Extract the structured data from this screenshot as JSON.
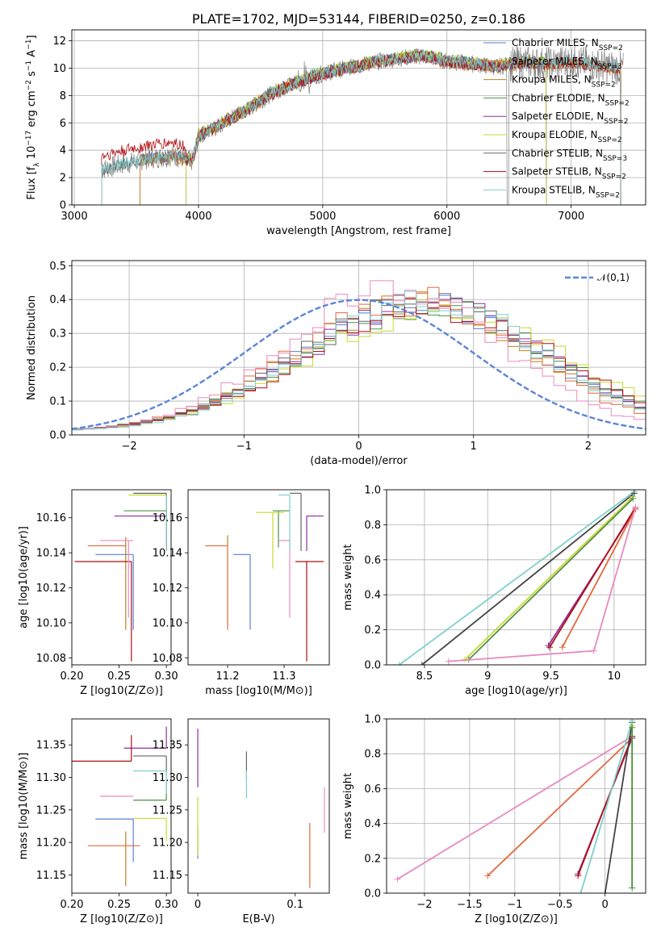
{
  "chart_data": [
    {
      "type": "line",
      "title": "PLATE=1702, MJD=53144, FIBERID=0250, z=0.186",
      "xlabel": "wavelength [Angstrom, rest frame]",
      "ylabel": "Flux [f_λ 10^-17 erg cm^-2 s^-1 A^-1]",
      "xlim": [
        2980,
        7600
      ],
      "ylim": [
        0,
        12.8
      ],
      "xticks": [
        3000,
        4000,
        5000,
        6000,
        7000
      ],
      "yticks": [
        0,
        2,
        4,
        6,
        8,
        10,
        12
      ],
      "grid": true,
      "legend_position": "top-right",
      "series": [
        {
          "name": "Chabrier MILES, N_SSP=2",
          "color": "#5b7fd6",
          "range": [
            3530,
            7400
          ]
        },
        {
          "name": "Salpeter MILES, N_SSP=3",
          "color": "#e2683a",
          "range": [
            3530,
            7400
          ]
        },
        {
          "name": "Kroupa MILES, N_SSP=2",
          "color": "#c47e1d",
          "range": [
            3530,
            7400
          ]
        },
        {
          "name": "Chabrier ELODIE, N_SSP=2",
          "color": "#4f8f4a",
          "range": [
            3900,
            6800
          ]
        },
        {
          "name": "Salpeter ELODIE, N_SSP=2",
          "color": "#8e2ea0",
          "range": [
            3900,
            6800
          ]
        },
        {
          "name": "Kroupa ELODIE, N_SSP=2",
          "color": "#c9d92c",
          "range": [
            3900,
            6800
          ]
        },
        {
          "name": "Chabrier STELIB, N_SSP=3",
          "color": "#666666",
          "range": [
            3220,
            7400
          ]
        },
        {
          "name": "Salpeter STELIB, N_SSP=2",
          "color": "#b00d12",
          "range": [
            3220,
            7400
          ]
        },
        {
          "name": "Kroupa STELIB, N_SSP=2",
          "color": "#7ecfcf",
          "range": [
            3220,
            7400
          ]
        }
      ],
      "flux_anchors": {
        "x": [
          3220,
          3400,
          3600,
          3800,
          3950,
          4000,
          4200,
          4400,
          4600,
          4800,
          5000,
          5200,
          5400,
          5600,
          5800,
          6000,
          6200,
          6400,
          6600,
          6800,
          7000,
          7200,
          7400
        ],
        "y": [
          2.6,
          3.0,
          3.4,
          3.6,
          3.2,
          5.0,
          6.0,
          7.0,
          8.2,
          9.0,
          9.6,
          10.0,
          10.4,
          10.7,
          10.9,
          10.5,
          10.3,
          10.1,
          10.4,
          10.3,
          10.5,
          10.2,
          10.0
        ]
      }
    },
    {
      "type": "step",
      "xlabel": "(data-model)/error",
      "ylabel": "Normed distribution",
      "xlim": [
        -2.5,
        2.5
      ],
      "ylim": [
        0,
        0.515
      ],
      "xticks": [
        -2,
        -1,
        0,
        1,
        2
      ],
      "yticks": [
        0.0,
        0.1,
        0.2,
        0.3,
        0.4,
        0.5
      ],
      "grid": true,
      "legend": "𝒩(0,1)",
      "reference_curve": {
        "name": "N(0,1)",
        "mean": 0,
        "sigma": 1,
        "color": "#5b86d6"
      },
      "bin_width": 0.1,
      "series": [
        {
          "color": "#5b7fd6",
          "mu": 0.55,
          "sigma": 1.05
        },
        {
          "color": "#e2683a",
          "mu": 0.45,
          "sigma": 1.0
        },
        {
          "color": "#c47e1d",
          "mu": 0.5,
          "sigma": 1.05
        },
        {
          "color": "#4f8f4a",
          "mu": 0.6,
          "sigma": 1.1
        },
        {
          "color": "#8e2ea0",
          "mu": 0.6,
          "sigma": 1.05
        },
        {
          "color": "#c9d92c",
          "mu": 0.7,
          "sigma": 1.1
        },
        {
          "color": "#666666",
          "mu": 0.55,
          "sigma": 1.05
        },
        {
          "color": "#b00d12",
          "mu": 0.65,
          "sigma": 1.1
        },
        {
          "color": "#e88ac0",
          "mu": 0.3,
          "sigma": 0.95
        },
        {
          "color": "#7ecfcf",
          "mu": 0.55,
          "sigma": 1.0
        }
      ]
    },
    {
      "type": "errorbar",
      "xlabel": "Z [log10(Z/Z⊙)]",
      "ylabel": "age [log10(age/yr)]",
      "xlim": [
        0.2,
        0.305
      ],
      "ylim": [
        10.076,
        10.176
      ],
      "xticks": [
        0.2,
        0.25,
        0.3
      ],
      "xticklabels": [
        "0.20",
        "0.25",
        "0.30"
      ],
      "yticks": [
        10.08,
        10.1,
        10.12,
        10.14,
        10.16
      ],
      "points": [
        {
          "color": "#5b7fd6",
          "x": 0.265,
          "y": 10.139,
          "xerr": [
            0.04,
            0
          ],
          "yerr": [
            0.043,
            0
          ]
        },
        {
          "color": "#e2683a",
          "x": 0.257,
          "y": 10.144,
          "xerr": [
            0.04,
            0.0
          ],
          "yerr": [
            0,
            0.0
          ]
        },
        {
          "color": "#c47e1d",
          "x": 0.257,
          "y": 10.144,
          "xerr": [
            0,
            0.0
          ],
          "yerr": [
            0.048,
            0.005
          ]
        },
        {
          "color": "#4f8f4a",
          "x": 0.3,
          "y": 10.164,
          "xerr": [
            0.045,
            0
          ],
          "yerr": [
            0.021,
            0
          ]
        },
        {
          "color": "#8e2ea0",
          "x": 0.3,
          "y": 10.161,
          "xerr": [
            0.055,
            0
          ],
          "yerr": [
            0.02,
            0
          ]
        },
        {
          "color": "#c9d92c",
          "x": 0.3,
          "y": 10.173,
          "xerr": [
            0.04,
            0
          ],
          "yerr": [
            0.032,
            0
          ]
        },
        {
          "color": "#666666",
          "x": 0.3,
          "y": 10.174,
          "xerr": [
            0.035,
            0
          ],
          "yerr": [
            0.033,
            0
          ]
        },
        {
          "color": "#b00d12",
          "x": 0.263,
          "y": 10.135,
          "xerr": [
            0.06,
            0
          ],
          "yerr": [
            0.057,
            0
          ]
        },
        {
          "color": "#e88ac0",
          "x": 0.26,
          "y": 10.147,
          "xerr": [
            0.03,
            0.005
          ],
          "yerr": [
            0.044,
            0
          ]
        },
        {
          "color": "#7ecfcf",
          "x": 0.3,
          "y": 10.173,
          "xerr": [
            0,
            0
          ],
          "yerr": [
            0.032,
            0
          ]
        }
      ]
    },
    {
      "type": "errorbar",
      "xlabel": "mass [log10(M/M⊙)]",
      "ylabel": "",
      "xlim": [
        11.13,
        11.38
      ],
      "ylim": [
        10.076,
        10.176
      ],
      "xticks": [
        11.2,
        11.3
      ],
      "yticks": [
        10.08,
        10.1,
        10.12,
        10.14,
        10.16
      ],
      "points": [
        {
          "color": "#5b7fd6",
          "x": 11.24,
          "y": 10.139,
          "xerr": [
            0.03,
            0
          ],
          "yerr": [
            0.043,
            0
          ]
        },
        {
          "color": "#e2683a",
          "x": 11.2,
          "y": 10.144,
          "xerr": [
            0.04,
            0
          ],
          "yerr": [
            0.048,
            0
          ]
        },
        {
          "color": "#c47e1d",
          "x": 11.2,
          "y": 10.144,
          "xerr": [
            0,
            0
          ],
          "yerr": [
            0,
            0.006
          ]
        },
        {
          "color": "#4f8f4a",
          "x": 11.29,
          "y": 10.164,
          "xerr": [
            0.01,
            0.02
          ],
          "yerr": [
            0.021,
            0
          ]
        },
        {
          "color": "#8e2ea0",
          "x": 11.34,
          "y": 10.161,
          "xerr": [
            0,
            0.03
          ],
          "yerr": [
            0.02,
            0
          ]
        },
        {
          "color": "#c9d92c",
          "x": 11.28,
          "y": 10.163,
          "xerr": [
            0.03,
            0.02
          ],
          "yerr": [
            0.032,
            0
          ]
        },
        {
          "color": "#666666",
          "x": 11.33,
          "y": 10.174,
          "xerr": [
            0.02,
            0
          ],
          "yerr": [
            0.033,
            0
          ]
        },
        {
          "color": "#b00d12",
          "x": 11.34,
          "y": 10.135,
          "xerr": [
            0.02,
            0.03
          ],
          "yerr": [
            0.057,
            0
          ]
        },
        {
          "color": "#e88ac0",
          "x": 11.31,
          "y": 10.147,
          "xerr": [
            0.02,
            0
          ],
          "yerr": [
            0.044,
            0
          ]
        },
        {
          "color": "#7ecfcf",
          "x": 11.31,
          "y": 10.173,
          "xerr": [
            0.02,
            0
          ],
          "yerr": [
            0.032,
            0
          ]
        }
      ]
    },
    {
      "type": "line",
      "xlabel": "age [log10(age/yr)]",
      "ylabel": "mass weight",
      "xlim": [
        8.2,
        10.25
      ],
      "ylim": [
        0,
        1.0
      ],
      "xticks": [
        8.5,
        9.0,
        9.5,
        10.0
      ],
      "yticks": [
        0.0,
        0.2,
        0.4,
        0.6,
        0.8,
        1.0
      ],
      "grid": true,
      "series": [
        {
          "color": "#7ecfcf",
          "x": [
            8.3,
            10.16
          ],
          "y": [
            0.0,
            0.99
          ]
        },
        {
          "color": "#444444",
          "x": [
            8.48,
            10.16
          ],
          "y": [
            0.0,
            0.98
          ]
        },
        {
          "color": "#c9d92c",
          "x": [
            8.82,
            10.15
          ],
          "y": [
            0.03,
            0.96
          ]
        },
        {
          "color": "#4f8f4a",
          "x": [
            8.85,
            10.15
          ],
          "y": [
            0.03,
            0.95
          ]
        },
        {
          "color": "#8e2ea0",
          "x": [
            9.48,
            10.17
          ],
          "y": [
            0.11,
            0.89
          ]
        },
        {
          "color": "#b00d12",
          "x": [
            9.49,
            10.17
          ],
          "y": [
            0.1,
            0.9
          ]
        },
        {
          "color": "#e2683a",
          "x": [
            9.59,
            10.17
          ],
          "y": [
            0.1,
            0.89
          ]
        },
        {
          "color": "#e88ac0",
          "x": [
            8.69,
            9.84,
            10.17
          ],
          "y": [
            0.02,
            0.08,
            0.9
          ]
        }
      ]
    },
    {
      "type": "errorbar",
      "xlabel": "Z [log10(Z/Z⊙)]",
      "ylabel": "mass [log10(M/M⊙)]",
      "xlim": [
        0.2,
        0.305
      ],
      "ylim": [
        11.122,
        11.39
      ],
      "xticks": [
        0.2,
        0.25,
        0.3
      ],
      "xticklabels": [
        "0.20",
        "0.25",
        "0.30"
      ],
      "yticks": [
        11.15,
        11.2,
        11.25,
        11.3,
        11.35
      ],
      "points": [
        {
          "color": "#5b7fd6",
          "x": 0.265,
          "y": 11.236,
          "xerr": [
            0.04,
            0
          ],
          "yerr": [
            0.066,
            0
          ]
        },
        {
          "color": "#e2683a",
          "x": 0.257,
          "y": 11.195,
          "xerr": [
            0.04,
            0.015
          ],
          "yerr": [
            0,
            0
          ]
        },
        {
          "color": "#c47e1d",
          "x": 0.257,
          "y": 11.195,
          "xerr": [
            0,
            0
          ],
          "yerr": [
            0.062,
            0.022
          ]
        },
        {
          "color": "#4f8f4a",
          "x": 0.3,
          "y": 11.265,
          "xerr": [
            0.035,
            0
          ],
          "yerr": [
            0,
            0.03
          ]
        },
        {
          "color": "#8e2ea0",
          "x": 0.3,
          "y": 11.345,
          "xerr": [
            0.045,
            0
          ],
          "yerr": [
            0,
            0.033
          ]
        },
        {
          "color": "#c9d92c",
          "x": 0.3,
          "y": 11.237,
          "xerr": [
            0.035,
            0
          ],
          "yerr": [
            0.035,
            0
          ]
        },
        {
          "color": "#666666",
          "x": 0.3,
          "y": 11.333,
          "xerr": [
            0.035,
            0
          ],
          "yerr": [
            0.03,
            0
          ]
        },
        {
          "color": "#b00d12",
          "x": 0.263,
          "y": 11.325,
          "xerr": [
            0.063,
            0
          ],
          "yerr": [
            0,
            0.04
          ]
        },
        {
          "color": "#e88ac0",
          "x": 0.26,
          "y": 11.271,
          "xerr": [
            0.03,
            0.005
          ],
          "yerr": [
            0,
            0
          ]
        },
        {
          "color": "#7ecfcf",
          "x": 0.3,
          "y": 11.31,
          "xerr": [
            0.035,
            0
          ],
          "yerr": [
            0.035,
            0
          ]
        }
      ]
    },
    {
      "type": "errorbar",
      "xlabel": "E(B-V)",
      "ylabel": "",
      "xlim": [
        -0.01,
        0.135
      ],
      "ylim": [
        11.122,
        11.39
      ],
      "xticks": [
        0.0,
        0.1
      ],
      "yticks": [
        11.15,
        11.2,
        11.25,
        11.3,
        11.35
      ],
      "points": [
        {
          "color": "#5b7fd6",
          "x": 0.0,
          "y": 11.195,
          "xerr": [
            0,
            0
          ],
          "yerr": [
            0.02,
            0.03
          ]
        },
        {
          "color": "#8e2ea0",
          "x": 0.0,
          "y": 11.33,
          "xerr": [
            0,
            0
          ],
          "yerr": [
            0.045,
            0.045
          ]
        },
        {
          "color": "#c9d92c",
          "x": 0.0,
          "y": 11.23,
          "xerr": [
            0,
            0
          ],
          "yerr": [
            0.05,
            0.04
          ]
        },
        {
          "color": "#666666",
          "x": 0.05,
          "y": 11.315,
          "xerr": [
            0,
            0
          ],
          "yerr": [
            0.02,
            0.025
          ]
        },
        {
          "color": "#7ecfcf",
          "x": 0.05,
          "y": 11.29,
          "xerr": [
            0,
            0
          ],
          "yerr": [
            0.022,
            0.02
          ]
        },
        {
          "color": "#e2683a",
          "x": 0.115,
          "y": 11.18,
          "xerr": [
            0,
            0
          ],
          "yerr": [
            0.05,
            0.05
          ]
        },
        {
          "color": "#e88ac0",
          "x": 0.13,
          "y": 11.25,
          "xerr": [
            0,
            0
          ],
          "yerr": [
            0.035,
            0.035
          ]
        }
      ]
    },
    {
      "type": "line",
      "xlabel": "Z [log10(Z/Z⊙)]",
      "ylabel": "mass weight",
      "xlim": [
        -2.42,
        0.45
      ],
      "ylim": [
        0,
        1.0
      ],
      "xticks": [
        -2.0,
        -1.5,
        -1.0,
        -0.5,
        0.0
      ],
      "yticks": [
        0.0,
        0.2,
        0.4,
        0.6,
        0.8,
        1.0
      ],
      "grid": true,
      "series": [
        {
          "color": "#e88ac0",
          "x": [
            -2.3,
            0.3
          ],
          "y": [
            0.08,
            0.9
          ]
        },
        {
          "color": "#e2683a",
          "x": [
            -1.3,
            0.3
          ],
          "y": [
            0.1,
            0.89
          ]
        },
        {
          "color": "#8e2ea0",
          "x": [
            -0.3,
            0.3
          ],
          "y": [
            0.11,
            0.89
          ]
        },
        {
          "color": "#b00d12",
          "x": [
            -0.3,
            0.3
          ],
          "y": [
            0.1,
            0.9
          ]
        },
        {
          "color": "#444444",
          "x": [
            0.0,
            0.3
          ],
          "y": [
            0.0,
            0.98
          ]
        },
        {
          "color": "#7ecfcf",
          "x": [
            -0.27,
            0.3
          ],
          "y": [
            0.0,
            0.99
          ]
        },
        {
          "color": "#c9d92c",
          "x": [
            0.3,
            0.3
          ],
          "y": [
            0.03,
            0.96
          ]
        },
        {
          "color": "#4f8f4a",
          "x": [
            0.3,
            0.3
          ],
          "y": [
            0.03,
            0.95
          ]
        }
      ]
    }
  ]
}
